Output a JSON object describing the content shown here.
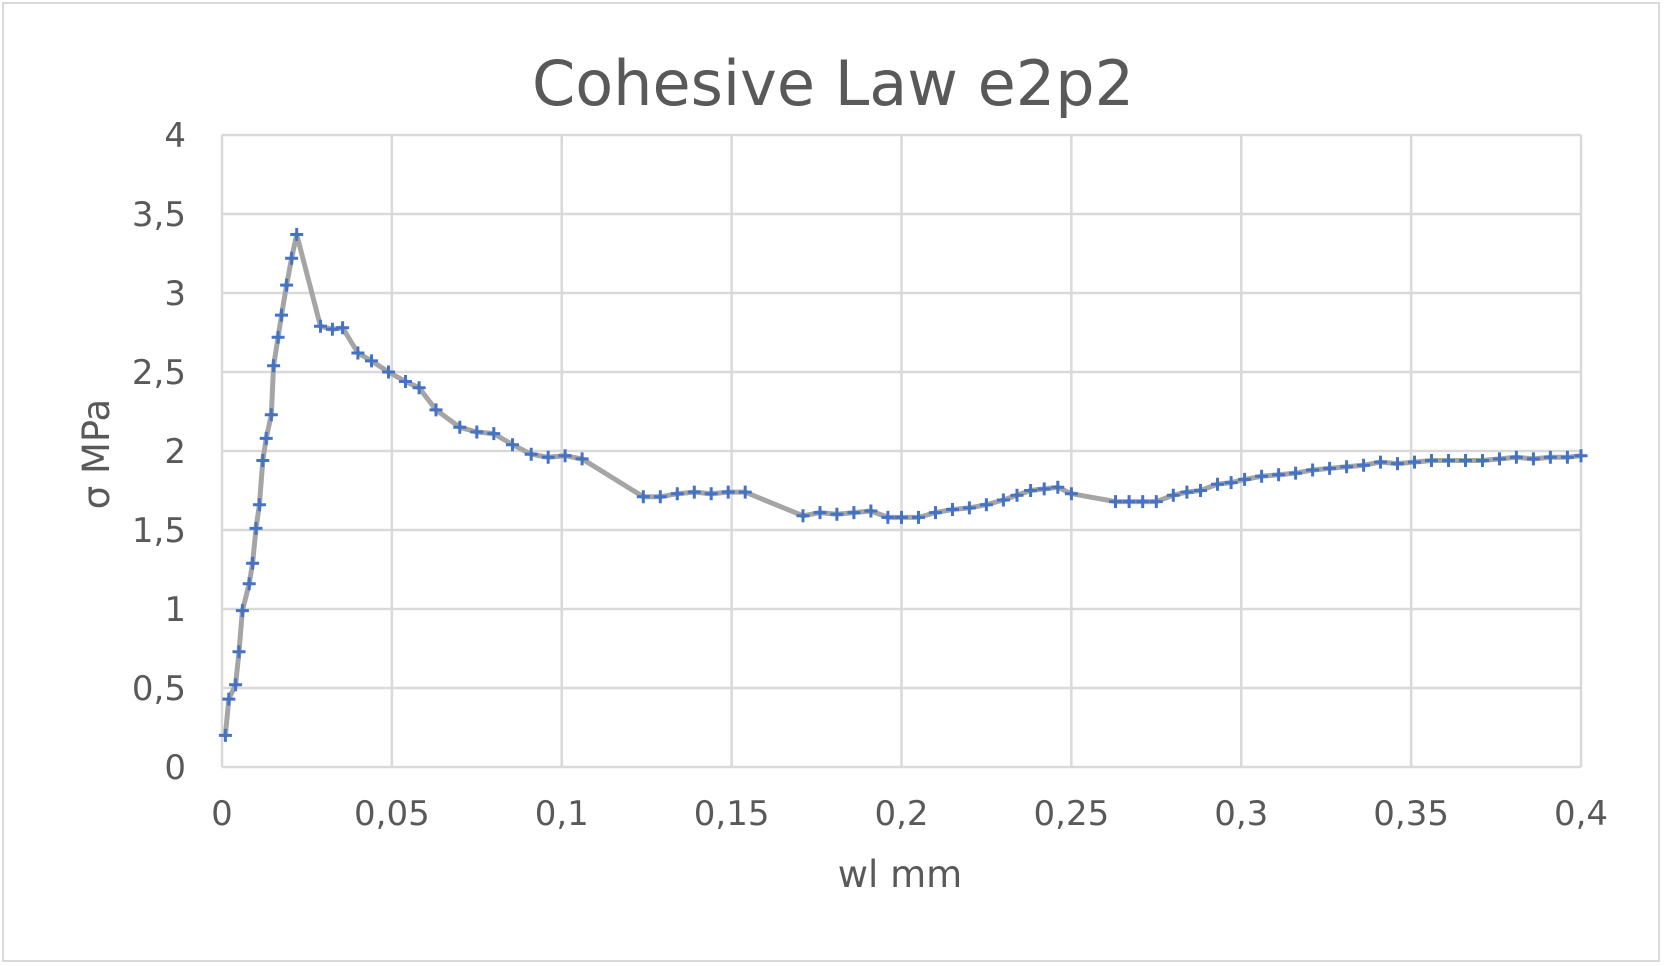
{
  "chart_data": {
    "type": "scatter",
    "title": "Cohesive Law e2p2",
    "xlabel": "wl mm",
    "ylabel": "σ MPa",
    "xlim": [
      0,
      0.4
    ],
    "ylim": [
      0,
      4
    ],
    "x_ticks": [
      "0",
      "0,05",
      "0,1",
      "0,15",
      "0,2",
      "0,25",
      "0,3",
      "0,35",
      "0,4"
    ],
    "y_ticks": [
      "0",
      "0,5",
      "1",
      "1,5",
      "2",
      "2,5",
      "3",
      "3,5",
      "4"
    ],
    "grid": true,
    "legend": "none",
    "colors": {
      "line": "#a5a5a5",
      "marker": "#4472c4",
      "grid": "#d9d9d9",
      "text": "#595959"
    },
    "marker": "plus",
    "series": [
      {
        "points": [
          [
            0.001,
            0.2
          ],
          [
            0.002,
            0.43
          ],
          [
            0.004,
            0.52
          ],
          [
            0.005,
            0.73
          ],
          [
            0.006,
            0.99
          ],
          [
            0.008,
            1.16
          ],
          [
            0.009,
            1.29
          ],
          [
            0.01,
            1.51
          ],
          [
            0.011,
            1.66
          ],
          [
            0.012,
            1.94
          ],
          [
            0.013,
            2.08
          ],
          [
            0.0145,
            2.23
          ],
          [
            0.0152,
            2.54
          ],
          [
            0.0165,
            2.72
          ],
          [
            0.0175,
            2.86
          ],
          [
            0.019,
            3.05
          ],
          [
            0.0205,
            3.22
          ],
          [
            0.022,
            3.37
          ],
          [
            0.029,
            2.79
          ],
          [
            0.0325,
            2.77
          ],
          [
            0.0355,
            2.78
          ],
          [
            0.04,
            2.62
          ],
          [
            0.044,
            2.57
          ],
          [
            0.049,
            2.5
          ],
          [
            0.054,
            2.44
          ],
          [
            0.058,
            2.4
          ],
          [
            0.063,
            2.26
          ],
          [
            0.07,
            2.15
          ],
          [
            0.075,
            2.12
          ],
          [
            0.08,
            2.11
          ],
          [
            0.0855,
            2.04
          ],
          [
            0.091,
            1.98
          ],
          [
            0.096,
            1.96
          ],
          [
            0.101,
            1.97
          ],
          [
            0.106,
            1.95
          ],
          [
            0.124,
            1.71
          ],
          [
            0.129,
            1.71
          ],
          [
            0.134,
            1.73
          ],
          [
            0.139,
            1.74
          ],
          [
            0.144,
            1.73
          ],
          [
            0.149,
            1.74
          ],
          [
            0.154,
            1.74
          ],
          [
            0.171,
            1.59
          ],
          [
            0.176,
            1.61
          ],
          [
            0.181,
            1.6
          ],
          [
            0.186,
            1.61
          ],
          [
            0.191,
            1.62
          ],
          [
            0.196,
            1.58
          ],
          [
            0.2,
            1.58
          ],
          [
            0.205,
            1.58
          ],
          [
            0.21,
            1.61
          ],
          [
            0.215,
            1.63
          ],
          [
            0.22,
            1.64
          ],
          [
            0.225,
            1.66
          ],
          [
            0.23,
            1.69
          ],
          [
            0.234,
            1.72
          ],
          [
            0.238,
            1.75
          ],
          [
            0.242,
            1.76
          ],
          [
            0.246,
            1.77
          ],
          [
            0.25,
            1.73
          ],
          [
            0.263,
            1.68
          ],
          [
            0.267,
            1.68
          ],
          [
            0.271,
            1.68
          ],
          [
            0.275,
            1.68
          ],
          [
            0.28,
            1.72
          ],
          [
            0.284,
            1.74
          ],
          [
            0.288,
            1.75
          ],
          [
            0.293,
            1.79
          ],
          [
            0.297,
            1.8
          ],
          [
            0.301,
            1.82
          ],
          [
            0.306,
            1.84
          ],
          [
            0.311,
            1.85
          ],
          [
            0.316,
            1.86
          ],
          [
            0.321,
            1.88
          ],
          [
            0.326,
            1.89
          ],
          [
            0.331,
            1.9
          ],
          [
            0.336,
            1.91
          ],
          [
            0.341,
            1.93
          ],
          [
            0.346,
            1.92
          ],
          [
            0.351,
            1.93
          ],
          [
            0.356,
            1.94
          ],
          [
            0.361,
            1.94
          ],
          [
            0.366,
            1.94
          ],
          [
            0.371,
            1.94
          ],
          [
            0.376,
            1.95
          ],
          [
            0.381,
            1.96
          ],
          [
            0.386,
            1.95
          ],
          [
            0.391,
            1.96
          ],
          [
            0.396,
            1.96
          ],
          [
            0.4,
            1.97
          ]
        ]
      }
    ]
  }
}
